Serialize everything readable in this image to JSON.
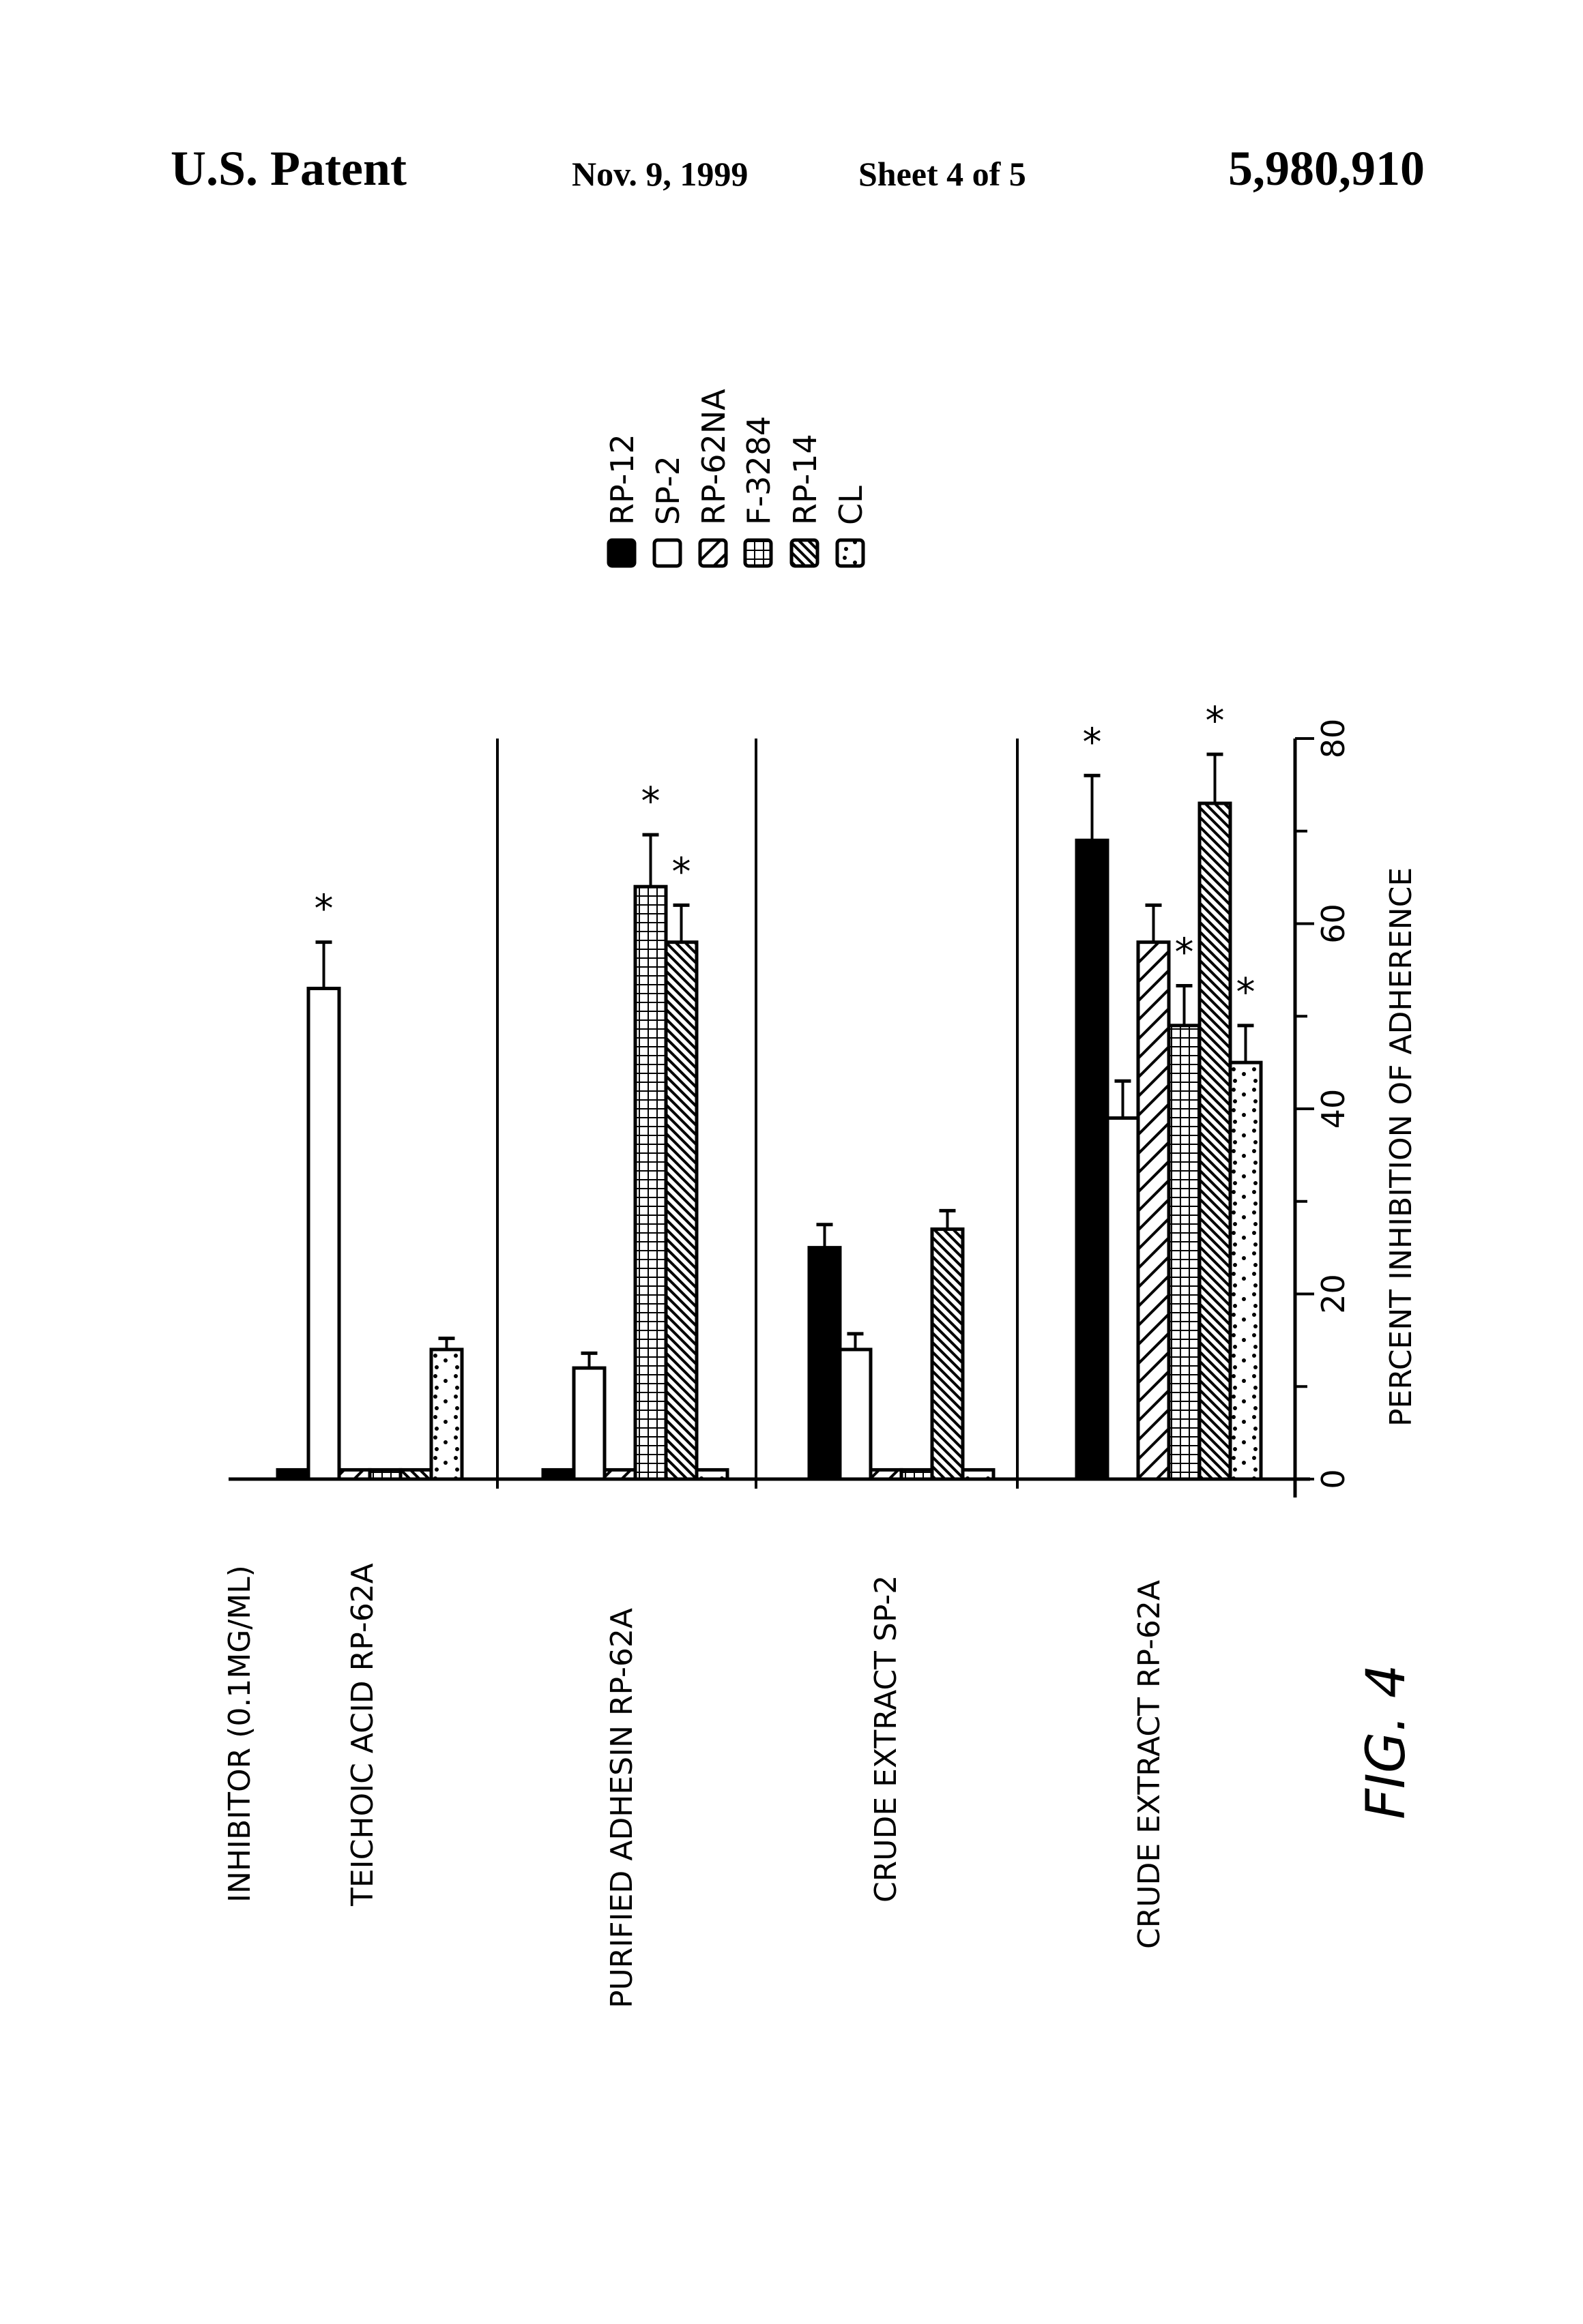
{
  "header": {
    "left": "U.S. Patent",
    "date": "Nov. 9, 1999",
    "sheet": "Sheet 4 of 5",
    "number": "5,980,910"
  },
  "figure_label": "FIG. 4",
  "chart_data": {
    "type": "bar",
    "orientation": "grouped vertical bars (page rotated 90°)",
    "title": "",
    "xlabel": "INHIBITOR (0.1MG/ML)",
    "ylabel": "PERCENT INHIBITION OF ADHERENCE",
    "ylim": [
      0,
      80
    ],
    "yticks": [
      0,
      10,
      20,
      30,
      40,
      50,
      60,
      70,
      80
    ],
    "ytick_labels": [
      "0",
      "20",
      "40",
      "60",
      "80"
    ],
    "grid": false,
    "legend_position": "top",
    "categories": [
      "TEICHOIC ACID RP-62A",
      "PURIFIED ADHESIN RP-62A",
      "CRUDE EXTRACT SP-2",
      "CRUDE EXTRACT RP-62A"
    ],
    "series": [
      {
        "name": "RP-12",
        "pattern": "solid",
        "values": [
          1,
          1,
          25,
          69
        ],
        "errors": [
          0,
          0,
          2.5,
          7
        ],
        "significant": [
          false,
          false,
          false,
          true
        ]
      },
      {
        "name": "SP-2",
        "pattern": "open",
        "values": [
          53,
          12,
          14,
          39
        ],
        "errors": [
          5,
          1.6,
          1.7,
          4
        ],
        "significant": [
          true,
          false,
          false,
          false
        ]
      },
      {
        "name": "RP-62NA",
        "pattern": "hatch-up",
        "values": [
          1,
          1,
          1,
          58
        ],
        "errors": [
          0,
          0,
          0,
          4
        ],
        "significant": [
          false,
          false,
          false,
          false
        ]
      },
      {
        "name": "F-3284",
        "pattern": "grid",
        "values": [
          1,
          64,
          1,
          49
        ],
        "errors": [
          0,
          5.6,
          0,
          4.3
        ],
        "significant": [
          false,
          true,
          false,
          true
        ]
      },
      {
        "name": "RP-14",
        "pattern": "hatch-down",
        "values": [
          1,
          58,
          27,
          73
        ],
        "errors": [
          0,
          4,
          2,
          5.3
        ],
        "significant": [
          false,
          true,
          false,
          true
        ]
      },
      {
        "name": "CL",
        "pattern": "dots",
        "values": [
          14,
          1,
          1,
          45
        ],
        "errors": [
          1.2,
          0,
          0,
          4
        ],
        "significant": [
          false,
          false,
          false,
          true
        ]
      }
    ],
    "annotations": [
      "* significant"
    ]
  }
}
